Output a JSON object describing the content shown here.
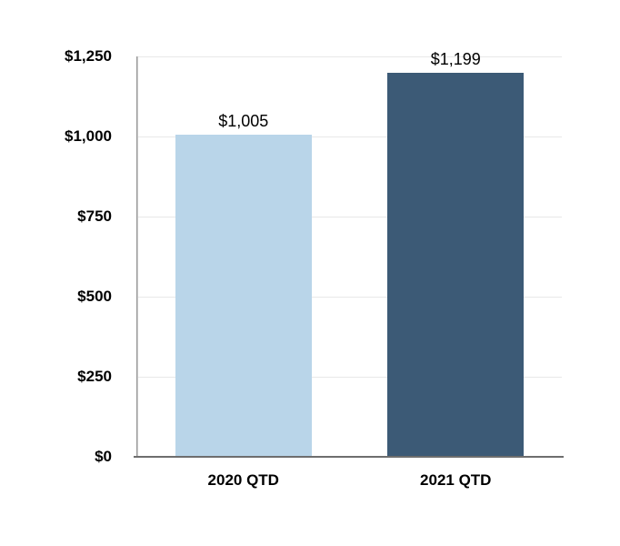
{
  "chart_data": {
    "type": "bar",
    "title": "",
    "xlabel": "",
    "ylabel": "",
    "categories": [
      "2020 QTD",
      "2021 QTD"
    ],
    "values": [
      1005,
      1199
    ],
    "value_labels": [
      "$1,005",
      "$1,199"
    ],
    "bar_colors": [
      "#B9D5E9",
      "#3C5A76"
    ],
    "ylim": [
      0,
      1250
    ],
    "y_ticks": [
      0,
      250,
      500,
      750,
      1000,
      1250
    ],
    "y_tick_labels": [
      "$0",
      "$250",
      "$500",
      "$750",
      "$1,000",
      "$1,250"
    ],
    "grid": "horizontal",
    "legend": "none",
    "background_color": "#FFFFFF",
    "gridline_color": "#E8E8E8",
    "y_axis_line_color": "#9A9A9A",
    "baseline_color": "#6E6E6E",
    "baseline_shadow_color": "#C8C8C8",
    "label_color": "#000000"
  }
}
